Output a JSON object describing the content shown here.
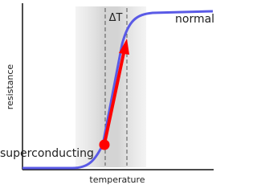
{
  "labels": {
    "normal": "normal",
    "superconducting": "superconducting",
    "delta_t": "ΔT",
    "y_axis": "resistance",
    "x_axis": "temperature"
  }
}
